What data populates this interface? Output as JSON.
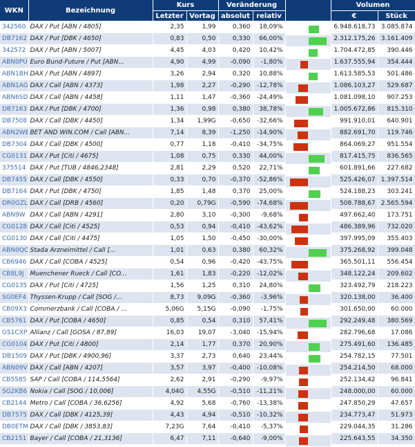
{
  "header": {
    "wkn": "WKN",
    "bezeichnung": "Bezeichnung",
    "kurs": "Kurs",
    "letzter": "Letzter",
    "vortag": "Vortag",
    "veraenderung": "Veränderung",
    "absolut": "absolut",
    "relativ": "relativ",
    "volumen": "Volumen",
    "euro": "€",
    "stueck": "Stück"
  },
  "colors": {
    "header_bg": "#0f3c78",
    "row_alt": "#dde4ef",
    "positive_bar": "#4fd14f",
    "negative_bar": "#cc3210",
    "wkn_link": "#3c6cb0"
  },
  "rows": [
    {
      "wkn": "342560",
      "name": "DAX / Put [ABN / 4805]",
      "letzter": "2,35",
      "vortag": "1,99",
      "absolut": "0,360",
      "relativ": "18,09%",
      "rel": 18.09,
      "euro": "6.948.618,73",
      "stueck": "3.085.874"
    },
    {
      "wkn": "DB7162",
      "name": "DAX / Put [DBK / 4650]",
      "letzter": "0,83",
      "vortag": "0,50",
      "absolut": "0,330",
      "relativ": "66,00%",
      "rel": 66.0,
      "euro": "2.312.175,26",
      "stueck": "3.161.409"
    },
    {
      "wkn": "342572",
      "name": "DAX / Put [ABN / 5007]",
      "letzter": "4,45",
      "vortag": "4,03",
      "absolut": "0,420",
      "relativ": "10,42%",
      "rel": 10.42,
      "euro": "1.704.472,85",
      "stueck": "390.446"
    },
    {
      "wkn": "ABN0PU",
      "name": "Euro Bund-Future / Put [ABN...",
      "letzter": "4,90",
      "vortag": "4,99",
      "absolut": "-0,090",
      "relativ": "-1,80%",
      "rel": -1.8,
      "euro": "1.637.555,94",
      "stueck": "354.444"
    },
    {
      "wkn": "ABN1BH",
      "name": "DAX / Put [ABN / 4897]",
      "letzter": "3,26",
      "vortag": "2,94",
      "absolut": "0,320",
      "relativ": "10,88%",
      "rel": 10.88,
      "euro": "1.613.585,53",
      "stueck": "501.486"
    },
    {
      "wkn": "ABN1AG",
      "name": "DAX / Call [ABN / 4373]",
      "letzter": "1,98",
      "vortag": "2,27",
      "absolut": "-0,290",
      "relativ": "-12,78%",
      "rel": -12.78,
      "euro": "1.086.103,27",
      "stueck": "529.687"
    },
    {
      "wkn": "ABN6SD",
      "name": "DAX / Call [ABN / 4458]",
      "letzter": "1,11",
      "vortag": "1,47",
      "absolut": "-0,360",
      "relativ": "-24,49%",
      "rel": -24.49,
      "euro": "1.081.098,10",
      "stueck": "907.253"
    },
    {
      "wkn": "DB7163",
      "name": "DAX / Put [DBK / 4700]",
      "letzter": "1,36",
      "vortag": "0,98",
      "absolut": "0,380",
      "relativ": "38,78%",
      "rel": 38.78,
      "euro": "1.005.672,86",
      "stueck": "815.310"
    },
    {
      "wkn": "DB7508",
      "name": "DAX / Call [DBK / 4450]",
      "letzter": "1,34",
      "vortag": "1,99G",
      "absolut": "-0,650",
      "relativ": "-32,66%",
      "rel": -32.66,
      "euro": "991.910,01",
      "stueck": "640.901"
    },
    {
      "wkn": "ABN2WB",
      "name": "BET AND WIN.COM / Call [ABN...",
      "letzter": "7,14",
      "vortag": "8,39",
      "absolut": "-1,250",
      "relativ": "-14,90%",
      "rel": -14.9,
      "euro": "882.691,70",
      "stueck": "119.746"
    },
    {
      "wkn": "DB7304",
      "name": "DAX / Call [DBK / 4500]",
      "letzter": "0,77",
      "vortag": "1,18",
      "absolut": "-0,410",
      "relativ": "-34,75%",
      "rel": -34.75,
      "euro": "864.069,27",
      "stueck": "951.554"
    },
    {
      "wkn": "CG0131",
      "name": "DAX / Put [Citi / 4675]",
      "letzter": "1,08",
      "vortag": "0,75",
      "absolut": "0,330",
      "relativ": "44,00%",
      "rel": 44.0,
      "euro": "817.415,75",
      "stueck": "836.565"
    },
    {
      "wkn": "375514",
      "name": "DAX / Put [TUB / 4846,2348]",
      "letzter": "2,81",
      "vortag": "2,29",
      "absolut": "0,520",
      "relativ": "22,71%",
      "rel": 22.71,
      "euro": "601.891,66",
      "stueck": "227.682"
    },
    {
      "wkn": "DB7455",
      "name": "DAX / Call [DBK / 4550]",
      "letzter": "0,33",
      "vortag": "0,70",
      "absolut": "-0,370",
      "relativ": "-52,86%",
      "rel": -52.86,
      "euro": "525.426,07",
      "stueck": "1.397.514"
    },
    {
      "wkn": "DB7164",
      "name": "DAX / Put [DBK / 4750]",
      "letzter": "1,85",
      "vortag": "1,48",
      "absolut": "0,370",
      "relativ": "25,00%",
      "rel": 25.0,
      "euro": "524.188,23",
      "stueck": "303.241"
    },
    {
      "wkn": "DR0GZL",
      "name": "DAX / Call [DRB / 4560]",
      "letzter": "0,20",
      "vortag": "0,79G",
      "absolut": "-0,590",
      "relativ": "-74,68%",
      "rel": -74.68,
      "euro": "508.788,67",
      "stueck": "2.565.594"
    },
    {
      "wkn": "ABN9W",
      "name": "DAX / Call [ABN / 4291]",
      "letzter": "2,80",
      "vortag": "3,10",
      "absolut": "-0,300",
      "relativ": "-9,68%",
      "rel": -9.68,
      "euro": "497.662,40",
      "stueck": "173.751"
    },
    {
      "wkn": "CG0128",
      "name": "DAX / Call [Citi / 4525]",
      "letzter": "0,53",
      "vortag": "0,94",
      "absolut": "-0,410",
      "relativ": "-43,62%",
      "rel": -43.62,
      "euro": "486.389,96",
      "stueck": "732.020"
    },
    {
      "wkn": "CG0130",
      "name": "DAX / Call [Citi / 4475]",
      "letzter": "1,05",
      "vortag": "1,50",
      "absolut": "-0,450",
      "relativ": "-30,00%",
      "rel": -30.0,
      "euro": "397.995,09",
      "stueck": "355.403"
    },
    {
      "wkn": "ABN0QC",
      "name": "Stada Arzneimittel / Call [...",
      "letzter": "1,01",
      "vortag": "0,63",
      "absolut": "0,380",
      "relativ": "60,32%",
      "rel": 60.32,
      "euro": "375.268,92",
      "stueck": "399.048"
    },
    {
      "wkn": "CB6946",
      "name": "DAX / Call [COBA / 4525]",
      "letzter": "0,54",
      "vortag": "0,96",
      "absolut": "-0,420",
      "relativ": "-43,75%",
      "rel": -43.75,
      "euro": "365.501,11",
      "stueck": "556.454"
    },
    {
      "wkn": "CB8L9J",
      "name": "Muenchener Rueck / Call [CO...",
      "letzter": "1,61",
      "vortag": "1,83",
      "absolut": "-0,220",
      "relativ": "-12,02%",
      "rel": -12.02,
      "euro": "348.122,24",
      "stueck": "209.602"
    },
    {
      "wkn": "CG0135",
      "name": "DAX / Put [Citi / 4725]",
      "letzter": "1,56",
      "vortag": "1,25",
      "absolut": "0,310",
      "relativ": "24,80%",
      "rel": 24.8,
      "euro": "323.492,79",
      "stueck": "218.223"
    },
    {
      "wkn": "SG0EF4",
      "name": "Thyssen-Krupp / Call [SOG /...",
      "letzter": "8,73",
      "vortag": "9,09G",
      "absolut": "-0,360",
      "relativ": "-3,96%",
      "rel": -3.96,
      "euro": "320.138,00",
      "stueck": "36.400"
    },
    {
      "wkn": "CB09X3",
      "name": "Commerzbank / Call [COBA / ...",
      "letzter": "5,06G",
      "vortag": "5,15G",
      "absolut": "-0,090",
      "relativ": "-1,75%",
      "rel": -1.75,
      "euro": "301.650,00",
      "stueck": "60.000"
    },
    {
      "wkn": "CB5761",
      "name": "DAX / Put [COBA / 4650]",
      "letzter": "0,85",
      "vortag": "0,54",
      "absolut": "0,310",
      "relativ": "57,41%",
      "rel": 57.41,
      "euro": "292.249,48",
      "stueck": "380.569"
    },
    {
      "wkn": "GS1CXP",
      "name": "Allianz / Call [GOSA / 87,89]",
      "letzter": "16,03",
      "vortag": "19,07",
      "absolut": "-3,040",
      "relativ": "-15,94%",
      "rel": -15.94,
      "euro": "282.796,68",
      "stueck": "17.086"
    },
    {
      "wkn": "CG0104",
      "name": "DAX / Put [Citi / 4800]",
      "letzter": "2,14",
      "vortag": "1,77",
      "absolut": "0,370",
      "relativ": "20,90%",
      "rel": 20.9,
      "euro": "275.491,60",
      "stueck": "136.485"
    },
    {
      "wkn": "DB1509",
      "name": "DAX / Put [DBK / 4900,96]",
      "letzter": "3,37",
      "vortag": "2,73",
      "absolut": "0,640",
      "relativ": "23,44%",
      "rel": 23.44,
      "euro": "254.782,15",
      "stueck": "77.501"
    },
    {
      "wkn": "ABN09V",
      "name": "DAX / Call [ABN / 4207]",
      "letzter": "3,57",
      "vortag": "3,97",
      "absolut": "-0,400",
      "relativ": "-10,08%",
      "rel": -10.08,
      "euro": "254.214,50",
      "stueck": "68.000"
    },
    {
      "wkn": "CB5585",
      "name": "SAP / Call [COBA / 114,5564]",
      "letzter": "2,62",
      "vortag": "2,91",
      "absolut": "-0,290",
      "relativ": "-9,97%",
      "rel": -9.97,
      "euro": "252.134,42",
      "stueck": "96.841"
    },
    {
      "wkn": "SG2KB6",
      "name": "Nokia / Call [SOG / 10,006]",
      "letzter": "4,04G",
      "vortag": "4,55G",
      "absolut": "-0,510",
      "relativ": "-11,21%",
      "rel": -11.21,
      "euro": "248.000,00",
      "stueck": "60.000"
    },
    {
      "wkn": "CB2144",
      "name": "Metro / Call [COBA / 36,6256]",
      "letzter": "4,92",
      "vortag": "5,68",
      "absolut": "-0,760",
      "relativ": "-13,38%",
      "rel": -13.38,
      "euro": "247.850,29",
      "stueck": "47.657"
    },
    {
      "wkn": "DB7575",
      "name": "DAX / Call [DBK / 4125,39]",
      "letzter": "4,43",
      "vortag": "4,94",
      "absolut": "-0,510",
      "relativ": "-10,32%",
      "rel": -10.32,
      "euro": "234.773,47",
      "stueck": "51.973"
    },
    {
      "wkn": "DB0ETM",
      "name": "DAX / Call [DBK / 3853,83]",
      "letzter": "7,23G",
      "vortag": "7,64",
      "absolut": "-0,410",
      "relativ": "-5,37%",
      "rel": -5.37,
      "euro": "229.044,35",
      "stueck": "31.286"
    },
    {
      "wkn": "CB2151",
      "name": "Bayer / Call [COBA / 21,3136]",
      "letzter": "6,47",
      "vortag": "7,11",
      "absolut": "-0,640",
      "relativ": "-9,00%",
      "rel": -9.0,
      "euro": "225.643,55",
      "stueck": "34.350"
    }
  ]
}
